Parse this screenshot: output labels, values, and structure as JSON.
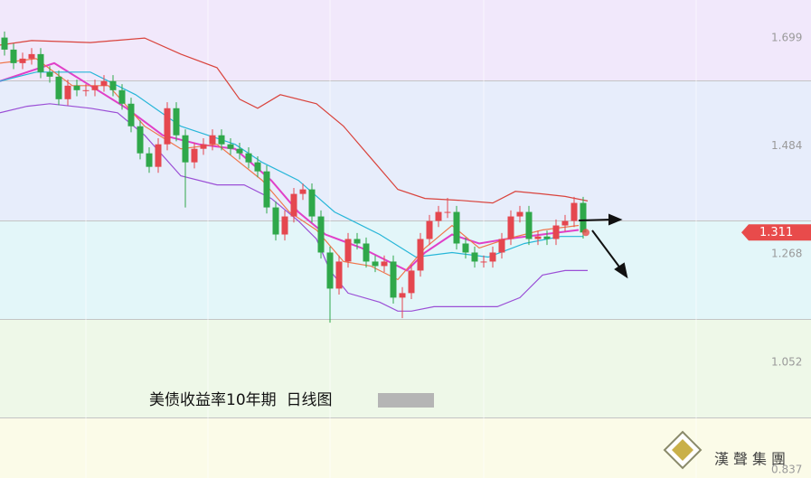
{
  "chart_data": {
    "type": "candlestick",
    "title": "美债收益率10年期  日线图",
    "open": [
      1.7,
      1.676,
      1.649,
      1.658,
      1.667,
      1.631,
      1.622,
      1.577,
      1.604,
      1.595,
      1.595,
      1.604,
      1.613,
      1.595,
      1.568,
      1.523,
      1.469,
      1.442,
      1.487,
      1.559,
      1.505,
      1.451,
      1.478,
      1.487,
      1.505,
      1.487,
      1.478,
      1.469,
      1.451,
      1.433,
      1.361,
      1.307,
      1.343,
      1.388,
      1.397,
      1.343,
      1.271,
      1.199,
      1.253,
      1.298,
      1.289,
      1.253,
      1.244,
      1.253,
      1.181,
      1.19,
      1.235,
      1.298,
      1.334,
      1.352,
      1.352,
      1.289,
      1.271,
      1.253,
      1.253,
      1.271,
      1.298,
      1.343,
      1.352,
      1.298,
      1.303,
      1.298,
      1.325,
      1.334,
      1.37
    ],
    "high": [
      1.712,
      1.688,
      1.67,
      1.679,
      1.679,
      1.643,
      1.634,
      1.616,
      1.616,
      1.607,
      1.616,
      1.625,
      1.625,
      1.607,
      1.58,
      1.535,
      1.481,
      1.499,
      1.571,
      1.571,
      1.517,
      1.49,
      1.499,
      1.517,
      1.517,
      1.499,
      1.49,
      1.481,
      1.463,
      1.445,
      1.373,
      1.355,
      1.4,
      1.409,
      1.409,
      1.355,
      1.283,
      1.265,
      1.31,
      1.31,
      1.301,
      1.265,
      1.265,
      1.265,
      1.202,
      1.247,
      1.31,
      1.346,
      1.364,
      1.38,
      1.364,
      1.301,
      1.283,
      1.265,
      1.283,
      1.31,
      1.355,
      1.364,
      1.364,
      1.315,
      1.315,
      1.337,
      1.346,
      1.382,
      1.382
    ],
    "low": [
      1.664,
      1.637,
      1.637,
      1.646,
      1.619,
      1.61,
      1.565,
      1.565,
      1.583,
      1.583,
      1.583,
      1.592,
      1.583,
      1.556,
      1.511,
      1.457,
      1.43,
      1.43,
      1.475,
      1.493,
      1.361,
      1.439,
      1.466,
      1.475,
      1.475,
      1.466,
      1.457,
      1.439,
      1.421,
      1.349,
      1.295,
      1.295,
      1.331,
      1.376,
      1.331,
      1.259,
      1.131,
      1.187,
      1.241,
      1.277,
      1.241,
      1.232,
      1.232,
      1.169,
      1.14,
      1.178,
      1.223,
      1.286,
      1.322,
      1.34,
      1.277,
      1.259,
      1.241,
      1.241,
      1.241,
      1.259,
      1.286,
      1.331,
      1.286,
      1.286,
      1.286,
      1.286,
      1.313,
      1.322,
      1.299
    ],
    "close": [
      1.676,
      1.649,
      1.658,
      1.667,
      1.631,
      1.622,
      1.577,
      1.604,
      1.595,
      1.595,
      1.604,
      1.613,
      1.595,
      1.568,
      1.523,
      1.469,
      1.442,
      1.487,
      1.559,
      1.505,
      1.451,
      1.478,
      1.487,
      1.505,
      1.487,
      1.478,
      1.469,
      1.451,
      1.433,
      1.361,
      1.307,
      1.343,
      1.388,
      1.397,
      1.343,
      1.271,
      1.199,
      1.253,
      1.298,
      1.289,
      1.253,
      1.244,
      1.253,
      1.181,
      1.19,
      1.235,
      1.298,
      1.334,
      1.352,
      1.352,
      1.289,
      1.271,
      1.253,
      1.253,
      1.271,
      1.298,
      1.343,
      1.352,
      1.298,
      1.303,
      1.298,
      1.325,
      1.334,
      1.37,
      1.311
    ],
    "up_color": "#e5474f",
    "down_color": "#2fa84a",
    "lines": [
      {
        "color": "#d9433c",
        "x": [
          -0.5,
          3,
          9.5,
          15.5,
          19.5,
          23.5,
          26,
          28,
          30.5,
          34.5,
          37.5,
          40.5,
          43.5,
          46.5,
          50.5,
          54,
          56.5,
          59.5,
          62,
          64.5
        ],
        "values": [
          1.685,
          1.694,
          1.69,
          1.699,
          1.667,
          1.64,
          1.577,
          1.559,
          1.586,
          1.568,
          1.523,
          1.46,
          1.397,
          1.379,
          1.375,
          1.37,
          1.393,
          1.388,
          1.383,
          1.374
        ]
      },
      {
        "color": "#9b4fd6",
        "x": [
          -0.5,
          2.5,
          5,
          9.5,
          12.5,
          15.5,
          19.5,
          23.5,
          26.5,
          29.5,
          32.5,
          34.5,
          36,
          38,
          41.5,
          43.5,
          45,
          47.5,
          51.5,
          54.5,
          57,
          59.5,
          62,
          64.5
        ],
        "values": [
          1.55,
          1.563,
          1.568,
          1.559,
          1.55,
          1.505,
          1.424,
          1.406,
          1.406,
          1.379,
          1.334,
          1.298,
          1.235,
          1.19,
          1.172,
          1.154,
          1.154,
          1.163,
          1.163,
          1.163,
          1.181,
          1.226,
          1.235,
          1.235
        ]
      },
      {
        "color": "#e040c8",
        "x": [
          -0.5,
          5.5,
          9.5,
          13.5,
          17.5,
          21.5,
          25.5,
          29.5,
          32.5,
          35.5,
          39.5,
          42.5,
          44.5,
          46.5,
          49.5,
          52.5,
          55.5,
          59.5,
          63.5
        ],
        "values": [
          1.613,
          1.649,
          1.604,
          1.559,
          1.505,
          1.487,
          1.478,
          1.415,
          1.352,
          1.307,
          1.28,
          1.253,
          1.235,
          1.271,
          1.307,
          1.289,
          1.298,
          1.307,
          1.316
        ]
      },
      {
        "color": "#27b6d8",
        "x": [
          -0.5,
          3.5,
          9.5,
          14.5,
          19.5,
          25.5,
          28.5,
          32.5,
          36.5,
          41.5,
          45.5,
          49.5,
          53.5,
          57.5,
          61.5,
          64
        ],
        "values": [
          1.613,
          1.631,
          1.631,
          1.586,
          1.523,
          1.487,
          1.451,
          1.415,
          1.352,
          1.307,
          1.262,
          1.271,
          1.262,
          1.289,
          1.303,
          1.303
        ]
      },
      {
        "color": "#f0774d",
        "x": [
          -0.5,
          3.5,
          7.5,
          11.5,
          15.5,
          19.5,
          23.5,
          28.5,
          31.5,
          34.5,
          37.5,
          40.5,
          43.5,
          46.5,
          49.5,
          52.5,
          55.5,
          59.5,
          63.5
        ],
        "values": [
          1.649,
          1.658,
          1.604,
          1.604,
          1.523,
          1.478,
          1.487,
          1.415,
          1.352,
          1.316,
          1.253,
          1.244,
          1.217,
          1.28,
          1.325,
          1.28,
          1.298,
          1.316,
          1.325
        ]
      }
    ],
    "ylim": [
      0.821,
      1.775
    ],
    "yticks": [
      1.699,
      1.484,
      1.268,
      1.052,
      0.837
    ],
    "last_price": 1.311,
    "label_color": "#e84b4b"
  },
  "logo": {
    "text": "漢聲集團"
  }
}
